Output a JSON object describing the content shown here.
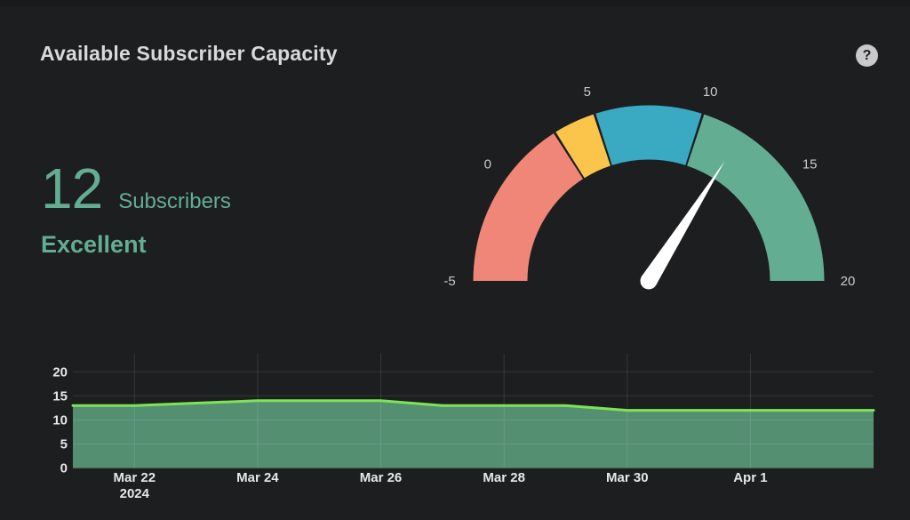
{
  "panel": {
    "title": "Available Subscriber Capacity",
    "help_glyph": "?",
    "background_color": "#1d1e20",
    "title_color": "#d8d9da"
  },
  "stat": {
    "value": "12",
    "unit_label": "Subscribers",
    "status_text": "Excellent",
    "color": "#63ad92"
  },
  "gauge": {
    "min": -5,
    "max": 20,
    "value": 12,
    "tick_labels": [
      "-5",
      "0",
      "5",
      "10",
      "15",
      "20"
    ],
    "tick_values": [
      -5,
      0,
      5,
      10,
      15,
      20
    ],
    "segments": [
      {
        "name": "critical",
        "from": -5,
        "to": 3,
        "color": "#f08678"
      },
      {
        "name": "warning",
        "from": 3,
        "to": 5,
        "color": "#fac54a"
      },
      {
        "name": "fair",
        "from": 5,
        "to": 10,
        "color": "#3aa9c2"
      },
      {
        "name": "excellent",
        "from": 10,
        "to": 20,
        "color": "#63ad92"
      }
    ],
    "needle_color": "#ffffff",
    "tick_label_color": "#c9cacc"
  },
  "chart_data": {
    "type": "area",
    "title": "",
    "xlabel": "",
    "ylabel": "",
    "x": [
      "Mar 21",
      "Mar 22",
      "Mar 23",
      "Mar 24",
      "Mar 25",
      "Mar 26",
      "Mar 27",
      "Mar 28",
      "Mar 29",
      "Mar 30",
      "Mar 31",
      "Apr 1",
      "Apr 2",
      "Apr 3"
    ],
    "values": [
      13,
      13,
      13.5,
      14,
      14,
      14,
      13,
      13,
      13,
      12,
      12,
      12,
      12,
      12
    ],
    "y_ticks": [
      0,
      5,
      10,
      15,
      20
    ],
    "ylim": [
      0,
      20
    ],
    "x_axis_labels": [
      {
        "text": "Mar 22",
        "sub": "2024",
        "index": 1
      },
      {
        "text": "Mar 24",
        "index": 3
      },
      {
        "text": "Mar 26",
        "index": 5
      },
      {
        "text": "Mar 28",
        "index": 7
      },
      {
        "text": "Mar 30",
        "index": 9
      },
      {
        "text": "Apr 1",
        "index": 11
      }
    ],
    "grid": "on",
    "legend": "none",
    "line_color": "#7ce455",
    "fill_color": "#558f72",
    "grid_color": "rgba(255,255,255,0.11)",
    "axis_label_color": "#e6e7e8"
  }
}
